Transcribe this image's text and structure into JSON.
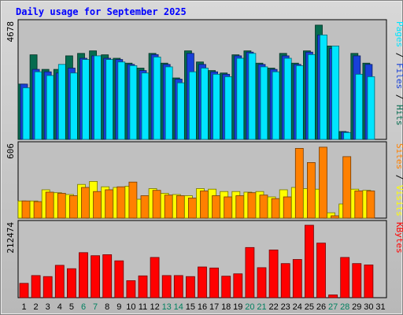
{
  "chart_data": {
    "type": "bar",
    "title": "Daily usage for September 2025",
    "days": [
      "1",
      "2",
      "3",
      "4",
      "5",
      "6",
      "7",
      "8",
      "9",
      "10",
      "11",
      "12",
      "13",
      "14",
      "15",
      "16",
      "17",
      "18",
      "19",
      "20",
      "21",
      "22",
      "23",
      "24",
      "25",
      "26",
      "27",
      "28",
      "29",
      "30",
      "31"
    ],
    "weekend_days": [
      6,
      7,
      13,
      14,
      20,
      21,
      27,
      28
    ],
    "colors": {
      "hits": "#066b4f",
      "files": "#1840d8",
      "pages": "#00e5ff",
      "visits": "#ffff00",
      "sites": "#ff8000",
      "kbytes": "#ff0000",
      "weekday_label": "#000000",
      "weekend_label": "#00805f",
      "title": "#0000ff"
    },
    "panels": [
      {
        "id": "top",
        "ymax_label": "4678",
        "ymax": 4678,
        "legend": [
          {
            "text": "Pages",
            "color": "#00e5ff"
          },
          {
            "text": " / ",
            "color": "#000000"
          },
          {
            "text": "Files",
            "color": "#1840d8"
          },
          {
            "text": " / ",
            "color": "#000000"
          },
          {
            "text": "Hits",
            "color": "#066b4f"
          }
        ],
        "series": [
          {
            "name": "Hits",
            "color": "#066b4f",
            "values": [
              2250,
              3440,
              2850,
              2850,
              3400,
              3500,
              3600,
              3440,
              3300,
              3100,
              2900,
              3500,
              3100,
              2500,
              3600,
              3150,
              2800,
              2700,
              3440,
              3600,
              3100,
              2900,
              3500,
              3100,
              3600,
              4650,
              3800,
              320,
              3500,
              3100
            ]
          },
          {
            "name": "Files",
            "color": "#1840d8",
            "values": [
              2250,
              2850,
              2750,
              2700,
              2900,
              3300,
              3400,
              3300,
              3250,
              3050,
              2800,
              3450,
              3050,
              2450,
              3500,
              3050,
              2750,
              2650,
              3400,
              3550,
              3050,
              2850,
              3400,
              3050,
              3550,
              4250,
              3700,
              300,
              3400,
              3050
            ]
          },
          {
            "name": "Pages",
            "color": "#00e5ff",
            "values": [
              2100,
              2750,
              2600,
              3050,
              2700,
              3250,
              3400,
              3250,
              3150,
              3000,
              2700,
              3350,
              2950,
              2300,
              2750,
              2900,
              2650,
              2550,
              3300,
              3500,
              2950,
              2750,
              3300,
              3000,
              3450,
              4250,
              3800,
              280,
              2650,
              2550
            ]
          }
        ]
      },
      {
        "id": "middle",
        "ymax_label": "606",
        "ymax": 606,
        "legend": [
          {
            "text": "Sites",
            "color": "#ff8000"
          },
          {
            "text": " / ",
            "color": "#000000"
          },
          {
            "text": "Visits",
            "color": "#ffff00"
          }
        ],
        "series": [
          {
            "name": "Visits",
            "color": "#ffff00",
            "values": [
              145,
              145,
              240,
              215,
              200,
              285,
              310,
              265,
              260,
              270,
              160,
              250,
              210,
              200,
              190,
              250,
              245,
              225,
              225,
              220,
              225,
              180,
              240,
              260,
              250,
              245,
              45,
              120,
              245,
              235
            ]
          },
          {
            "name": "Sites",
            "color": "#ff8000",
            "values": [
              145,
              140,
              220,
              210,
              190,
              260,
              225,
              240,
              265,
              305,
              190,
              235,
              195,
              190,
              170,
              230,
              190,
              180,
              190,
              215,
              195,
              165,
              180,
              590,
              470,
              600,
              20,
              520,
              230,
              230
            ]
          }
        ]
      },
      {
        "id": "bottom",
        "ymax_label": "212474",
        "ymax": 212474,
        "legend": [
          {
            "text": "KBytes",
            "color": "#ff0000"
          }
        ],
        "series": [
          {
            "name": "KBytes",
            "color": "#ff0000",
            "values": [
              42000,
              65000,
              62000,
              95000,
              85000,
              132000,
              123000,
              126000,
              108000,
              50000,
              64000,
              118000,
              65000,
              65000,
              62000,
              90000,
              87000,
              63000,
              70000,
              147000,
              88000,
              140000,
              100000,
              112000,
              212474,
              160000,
              8000,
              118000,
              100000,
              96000
            ]
          }
        ]
      }
    ]
  }
}
